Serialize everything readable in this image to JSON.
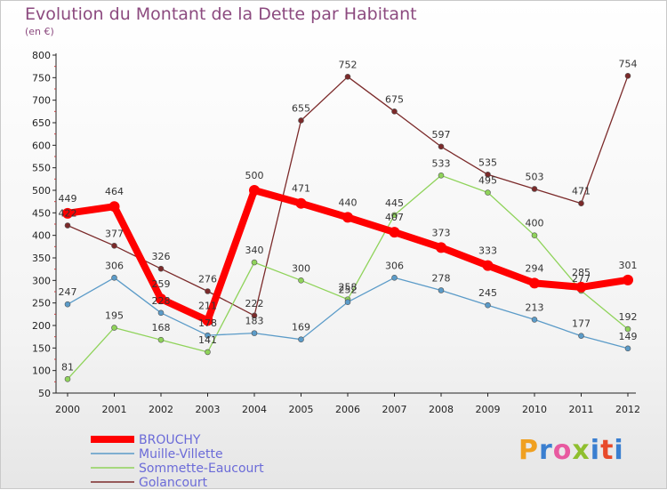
{
  "header": {
    "title": "Evolution du Montant de la Dette par Habitant",
    "subtitle": "(en €)"
  },
  "logo": {
    "text": "Proxiti",
    "colors": [
      "#f0a020",
      "#3a7fd0",
      "#e85aa0",
      "#8fbf2f",
      "#3a7fd0",
      "#e84a2a",
      "#3a7fd0"
    ]
  },
  "chart_data": {
    "type": "line",
    "title": "Evolution du Montant de la Dette par Habitant",
    "subtitle": "(en €)",
    "x": [
      "2000",
      "2001",
      "2002",
      "2003",
      "2004",
      "2005",
      "2006",
      "2007",
      "2008",
      "2009",
      "2010",
      "2011",
      "2012"
    ],
    "ylim": [
      50,
      800
    ],
    "yticks": [
      50,
      100,
      150,
      200,
      250,
      300,
      350,
      400,
      450,
      500,
      550,
      600,
      650,
      700,
      750,
      800
    ],
    "grid": false,
    "legend": "bottom-left",
    "series": [
      {
        "name": "BROUCHY",
        "color": "#ff0000",
        "values": [
          449,
          464,
          259,
          211,
          500,
          471,
          440,
          407,
          373,
          333,
          294,
          285,
          301
        ]
      },
      {
        "name": "Muille-Villette",
        "color": "#5b9bc8",
        "values": [
          247,
          306,
          228,
          178,
          183,
          169,
          252,
          306,
          278,
          245,
          213,
          177,
          149
        ]
      },
      {
        "name": "Sommette-Eaucourt",
        "color": "#8fd35a",
        "values": [
          81,
          195,
          168,
          141,
          340,
          300,
          258,
          445,
          533,
          495,
          400,
          277,
          192
        ]
      },
      {
        "name": "Golancourt",
        "color": "#7b2a2a",
        "values": [
          422,
          377,
          326,
          276,
          222,
          null,
          752,
          675,
          597,
          535,
          503,
          471,
          754
        ]
      }
    ],
    "extra_segments": [
      {
        "series": "Golancourt",
        "x": "2005",
        "value": 655
      }
    ]
  }
}
